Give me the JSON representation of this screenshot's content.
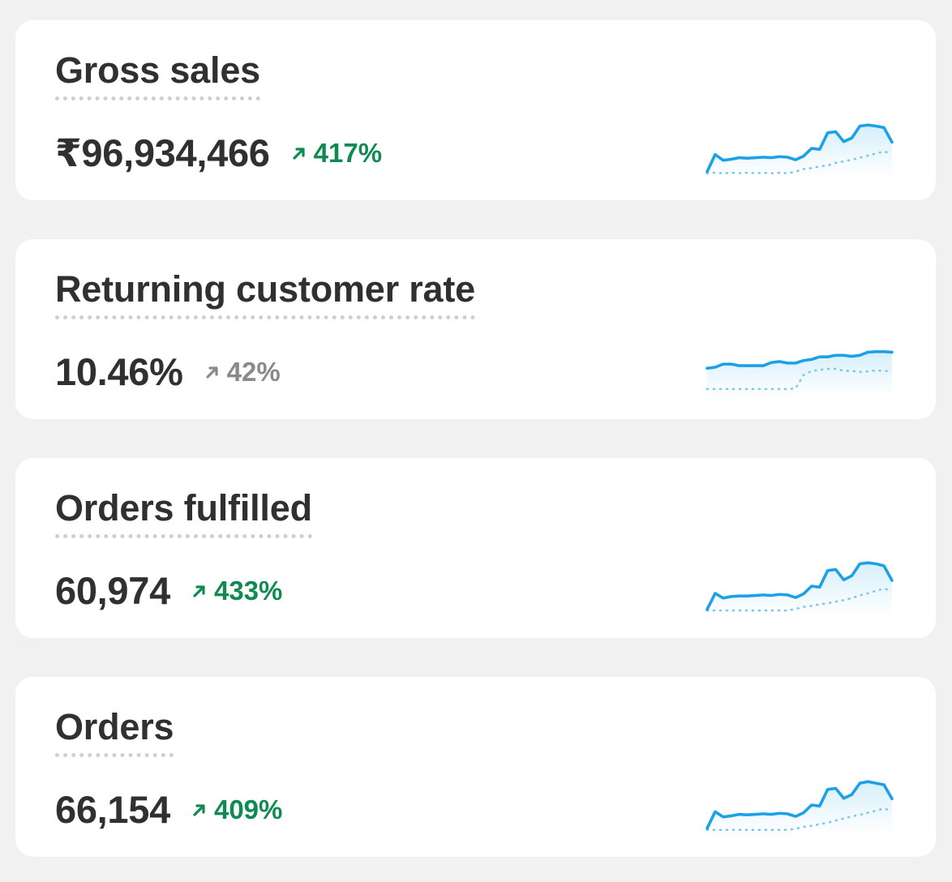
{
  "colors": {
    "background": "#f1f1f1",
    "card": "#ffffff",
    "text": "#303030",
    "positive": "#0f8b52",
    "neutral": "#8a8a8a",
    "sparkline": "#1da1e6",
    "sparkline_fill": "#d6effb",
    "comparison": "#7cc7ea"
  },
  "cards": [
    {
      "title": "Gross sales",
      "value": "₹96,934,466",
      "change": "417%",
      "trend": "up",
      "arrow_icon": "arrow-up-right-icon",
      "sparkline": {
        "current": [
          0.05,
          0.38,
          0.27,
          0.29,
          0.32,
          0.31,
          0.32,
          0.33,
          0.32,
          0.34,
          0.33,
          0.28,
          0.35,
          0.5,
          0.48,
          0.8,
          0.82,
          0.63,
          0.7,
          0.93,
          0.95,
          0.93,
          0.9,
          0.62
        ],
        "previous": [
          0.02,
          0.03,
          0.02,
          0.03,
          0.02,
          0.03,
          0.02,
          0.03,
          0.02,
          0.03,
          0.02,
          0.05,
          0.1,
          0.12,
          0.15,
          0.17,
          0.22,
          0.25,
          0.28,
          0.32,
          0.36,
          0.4,
          0.44,
          0.4
        ]
      }
    },
    {
      "title": "Returning customer rate",
      "value": "10.46%",
      "change": "42%",
      "trend": "neutral",
      "arrow_icon": "arrow-up-right-icon",
      "sparkline": {
        "current": [
          0.48,
          0.5,
          0.56,
          0.56,
          0.53,
          0.53,
          0.53,
          0.53,
          0.59,
          0.61,
          0.58,
          0.58,
          0.63,
          0.65,
          0.7,
          0.7,
          0.73,
          0.73,
          0.71,
          0.73,
          0.79,
          0.8,
          0.8,
          0.79
        ],
        "previous": [
          0.08,
          0.08,
          0.08,
          0.08,
          0.08,
          0.08,
          0.08,
          0.08,
          0.08,
          0.08,
          0.08,
          0.09,
          0.35,
          0.43,
          0.45,
          0.47,
          0.47,
          0.43,
          0.43,
          0.41,
          0.42,
          0.44,
          0.43,
          0.42
        ]
      }
    },
    {
      "title": "Orders fulfilled",
      "value": "60,974",
      "change": "433%",
      "trend": "up",
      "arrow_icon": "arrow-up-right-icon",
      "sparkline": {
        "current": [
          0.05,
          0.36,
          0.27,
          0.3,
          0.31,
          0.31,
          0.32,
          0.33,
          0.32,
          0.34,
          0.33,
          0.28,
          0.35,
          0.5,
          0.48,
          0.8,
          0.82,
          0.62,
          0.7,
          0.93,
          0.95,
          0.93,
          0.89,
          0.61
        ],
        "previous": [
          0.03,
          0.03,
          0.03,
          0.03,
          0.03,
          0.03,
          0.03,
          0.03,
          0.03,
          0.03,
          0.03,
          0.06,
          0.1,
          0.12,
          0.15,
          0.17,
          0.2,
          0.23,
          0.27,
          0.32,
          0.36,
          0.41,
          0.45,
          0.41
        ]
      }
    },
    {
      "title": "Orders",
      "value": "66,154",
      "change": "409%",
      "trend": "up",
      "arrow_icon": "arrow-up-right-icon",
      "sparkline": {
        "current": [
          0.05,
          0.37,
          0.27,
          0.29,
          0.32,
          0.31,
          0.32,
          0.33,
          0.32,
          0.34,
          0.33,
          0.28,
          0.35,
          0.5,
          0.48,
          0.8,
          0.82,
          0.63,
          0.7,
          0.92,
          0.95,
          0.92,
          0.89,
          0.62
        ],
        "previous": [
          0.02,
          0.02,
          0.02,
          0.02,
          0.02,
          0.02,
          0.02,
          0.02,
          0.02,
          0.02,
          0.02,
          0.04,
          0.08,
          0.1,
          0.13,
          0.16,
          0.2,
          0.24,
          0.28,
          0.31,
          0.35,
          0.39,
          0.43,
          0.39
        ]
      }
    }
  ]
}
